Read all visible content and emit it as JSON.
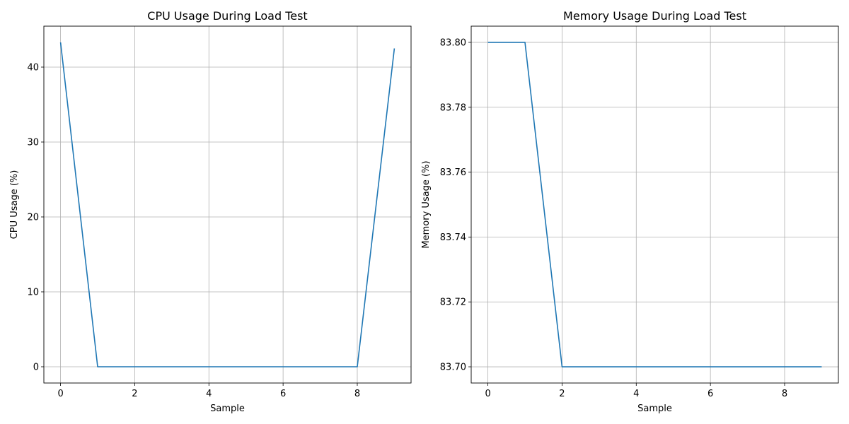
{
  "chart_data": [
    {
      "type": "line",
      "title": "CPU Usage During Load Test",
      "xlabel": "Sample",
      "ylabel": "CPU Usage (%)",
      "x": [
        0,
        1,
        2,
        3,
        4,
        5,
        6,
        7,
        8,
        9
      ],
      "series": [
        {
          "values": [
            43.3,
            0,
            0,
            0,
            0,
            0,
            0,
            0,
            0,
            42.5
          ],
          "color": "#1f77b4"
        }
      ],
      "xlim": [
        -0.45,
        9.45
      ],
      "ylim": [
        -2.17,
        45.47
      ],
      "xticks": [
        0,
        2,
        4,
        6,
        8
      ],
      "yticks": [
        0,
        10,
        20,
        30,
        40
      ],
      "xtick_labels": [
        "0",
        "2",
        "4",
        "6",
        "8"
      ],
      "ytick_labels": [
        "0",
        "10",
        "20",
        "30",
        "40"
      ],
      "grid": true
    },
    {
      "type": "line",
      "title": "Memory Usage During Load Test",
      "xlabel": "Sample",
      "ylabel": "Memory Usage (%)",
      "x": [
        0,
        1,
        2,
        3,
        4,
        5,
        6,
        7,
        8,
        9
      ],
      "series": [
        {
          "values": [
            83.8,
            83.8,
            83.7,
            83.7,
            83.7,
            83.7,
            83.7,
            83.7,
            83.7,
            83.7
          ],
          "color": "#1f77b4"
        }
      ],
      "xlim": [
        -0.45,
        9.45
      ],
      "ylim": [
        83.695,
        83.805
      ],
      "xticks": [
        0,
        2,
        4,
        6,
        8
      ],
      "yticks": [
        83.7,
        83.72,
        83.74,
        83.76,
        83.78,
        83.8
      ],
      "xtick_labels": [
        "0",
        "2",
        "4",
        "6",
        "8"
      ],
      "ytick_labels": [
        "83.70",
        "83.72",
        "83.74",
        "83.76",
        "83.78",
        "83.80"
      ],
      "grid": true
    }
  ]
}
